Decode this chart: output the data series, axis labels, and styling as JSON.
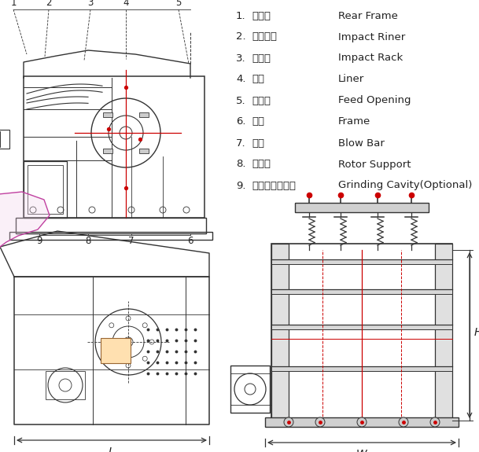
{
  "bg_color": "#ffffff",
  "drawing_color": "#333333",
  "red_color": "#cc0000",
  "pink_color": "#c040a0",
  "dim_color": "#cc0000",
  "legend": [
    {
      "num": "1.",
      "cn": "后箱体",
      "en": "Rear Frame"
    },
    {
      "num": "2.",
      "cn": "反击衬板",
      "en": "Impact Riner"
    },
    {
      "num": "3.",
      "cn": "反击架",
      "en": "Impact Rack"
    },
    {
      "num": "4.",
      "cn": "衬板",
      "en": "Liner"
    },
    {
      "num": "5.",
      "cn": "进料口",
      "en": "Feed Opening"
    },
    {
      "num": "6.",
      "cn": "底座",
      "en": "Frame"
    },
    {
      "num": "7.",
      "cn": "板锤",
      "en": "Blow Bar"
    },
    {
      "num": "8.",
      "cn": "转子架",
      "en": "Rotor Support"
    },
    {
      "num": "9.",
      "cn": "研磨腔（选装）",
      "en": "Grinding Cavity(Optional)"
    }
  ]
}
